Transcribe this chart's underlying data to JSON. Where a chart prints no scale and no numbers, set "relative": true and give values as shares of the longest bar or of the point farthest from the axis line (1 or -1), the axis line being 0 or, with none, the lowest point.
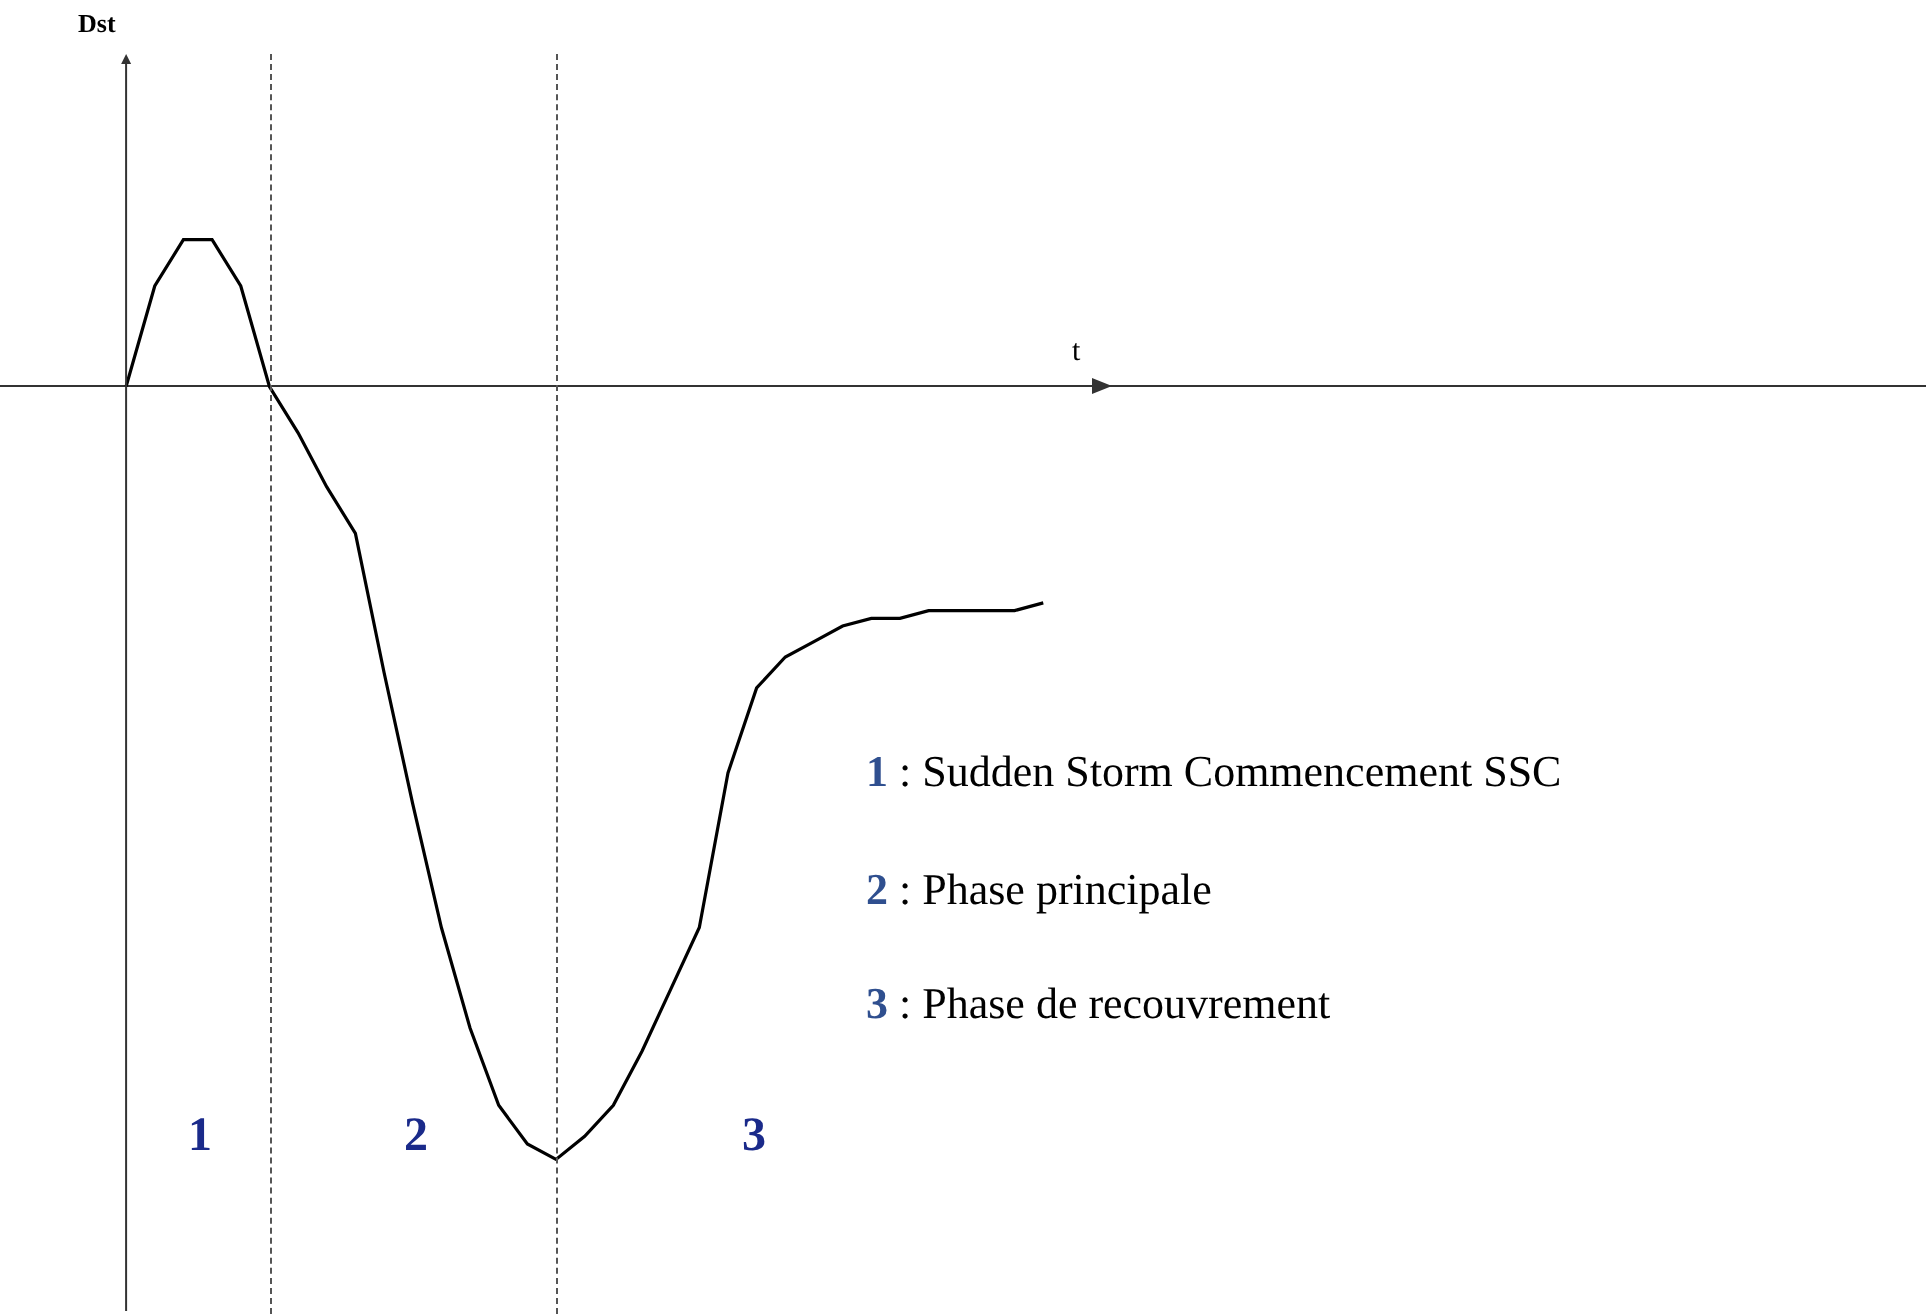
{
  "chart_data": {
    "type": "line",
    "relative": true,
    "xlabel": "t",
    "categories": [
      null,
      null,
      null,
      null,
      null,
      null,
      null,
      null,
      null,
      null,
      null,
      null,
      null,
      null,
      null,
      null,
      null,
      null,
      null,
      null,
      null,
      null,
      null,
      null,
      null,
      null,
      null,
      null,
      null,
      null,
      null,
      null,
      null
    ],
    "series": [
      {
        "color": "#000000",
        "values": [
          0,
          0.13,
          0.19,
          0.19,
          0.13,
          0,
          -0.06,
          -0.13,
          -0.19,
          -0.37,
          -0.54,
          -0.7,
          -0.83,
          -0.93,
          -0.98,
          -1,
          -0.97,
          -0.93,
          -0.86,
          -0.78,
          -0.7,
          -0.5,
          -0.39,
          -0.35,
          -0.33,
          -0.31,
          -0.3,
          -0.3,
          -0.29,
          -0.29,
          -0.29,
          -0.29,
          -0.28
        ]
      }
    ],
    "annotations": [
      "Dst",
      "1",
      "2",
      "3",
      "1 : Sudden Storm Commencement SSC",
      "2 : Phase principale",
      "3 : Phase de recouvrement"
    ],
    "marker": "none",
    "line_style": "solid",
    "tick_labels": false
  }
}
